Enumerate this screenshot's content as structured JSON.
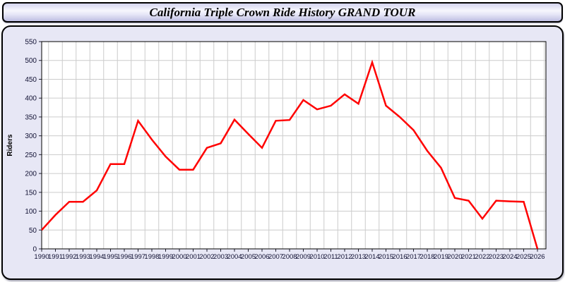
{
  "header": {
    "title": "California Triple Crown Ride History GRAND TOUR"
  },
  "colors": {
    "line": "#ff0000",
    "card_background": "#e7e7f5",
    "plot_background": "#ffffff",
    "gridline": "#cccccc",
    "tick_label": "#111133"
  },
  "chart_data": {
    "type": "line",
    "title": "California Triple Crown Ride History GRAND TOUR",
    "xlabel": "",
    "ylabel": "Riders",
    "ylim": [
      0,
      550
    ],
    "ytick_step": 50,
    "grid": true,
    "legend_position": "none",
    "line_color": "#ff0000",
    "x": [
      1990,
      1991,
      1992,
      1993,
      1994,
      1995,
      1996,
      1997,
      1998,
      1999,
      2000,
      2001,
      2002,
      2003,
      2004,
      2005,
      2006,
      2007,
      2008,
      2009,
      2010,
      2011,
      2012,
      2013,
      2014,
      2015,
      2016,
      2017,
      2018,
      2019,
      2020,
      2021,
      2022,
      2023,
      2024,
      2025,
      2026
    ],
    "values": [
      50,
      90,
      125,
      125,
      155,
      225,
      225,
      340,
      290,
      245,
      210,
      210,
      268,
      280,
      343,
      305,
      268,
      340,
      342,
      395,
      370,
      380,
      410,
      385,
      495,
      380,
      350,
      315,
      260,
      215,
      135,
      128,
      80,
      128,
      126,
      125,
      0
    ]
  }
}
